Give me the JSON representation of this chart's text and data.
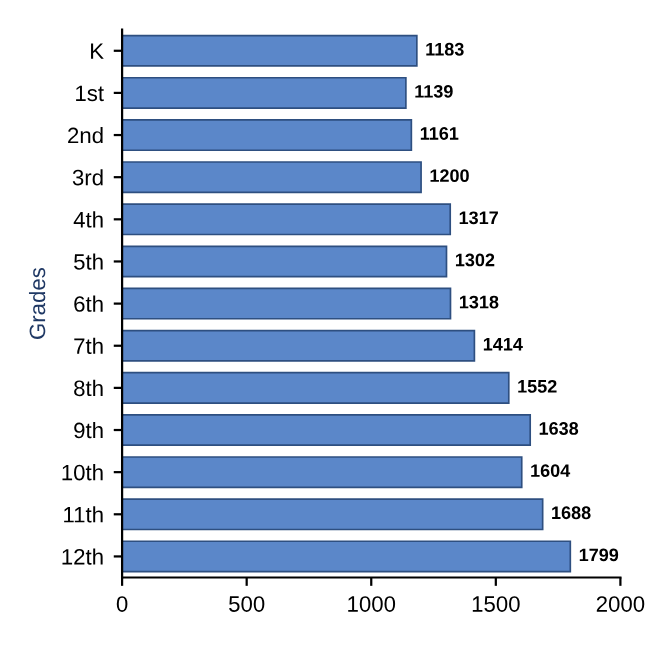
{
  "chart_data": {
    "type": "bar",
    "orientation": "horizontal",
    "ylabel": "Grades",
    "categories": [
      "K",
      "1st",
      "2nd",
      "3rd",
      "4th",
      "5th",
      "6th",
      "7th",
      "8th",
      "9th",
      "10th",
      "11th",
      "12th"
    ],
    "values": [
      1183,
      1139,
      1161,
      1200,
      1317,
      1302,
      1318,
      1414,
      1552,
      1638,
      1604,
      1688,
      1799
    ],
    "color": "#5b87c9",
    "xlim": [
      0,
      2000
    ],
    "xticks": [
      0,
      500,
      1000,
      1500,
      2000
    ],
    "data_labels": true,
    "grid": false,
    "legend": false
  }
}
